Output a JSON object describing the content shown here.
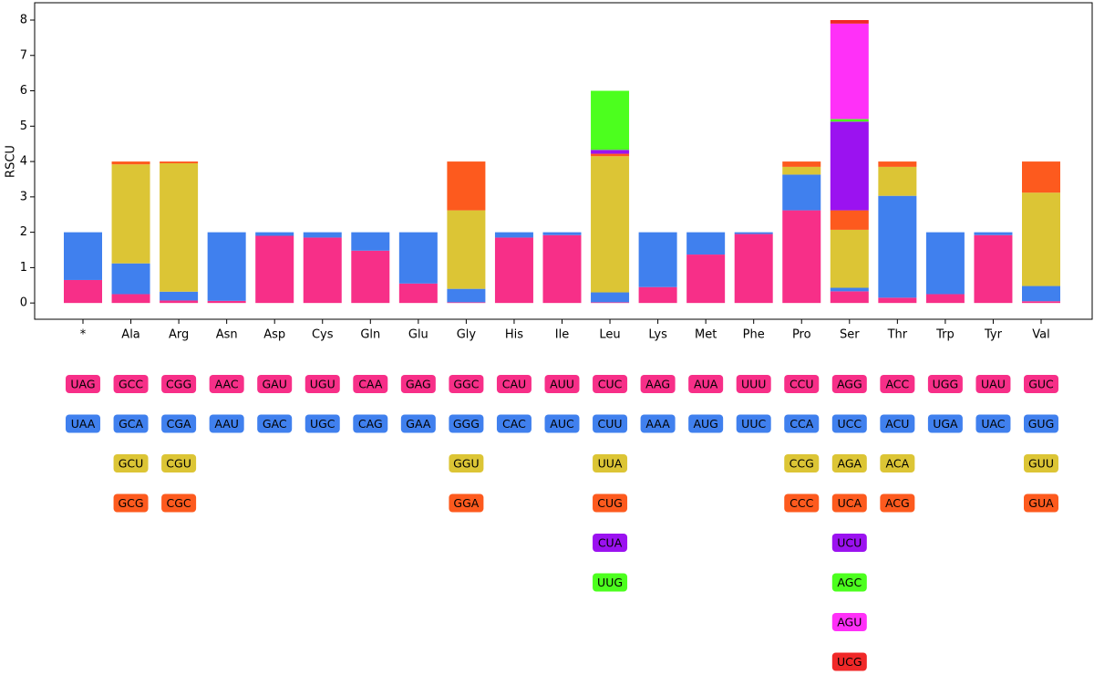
{
  "chart_data": {
    "type": "bar",
    "stacked": true,
    "ylabel": "RSCU",
    "ylim": [
      -0.46,
      8.49
    ],
    "yticks": [
      0,
      1,
      2,
      3,
      4,
      5,
      6,
      7,
      8
    ],
    "layer_colors": [
      "#f72f88",
      "#4080ee",
      "#dcc535",
      "#fd5a1e",
      "#9b12f0",
      "#4cff1e",
      "#ff30f8",
      "#f02828"
    ],
    "groups": [
      {
        "category": "*",
        "codons": [
          {
            "label": "UAG",
            "value": 0.65
          },
          {
            "label": "UAA",
            "value": 1.35
          }
        ]
      },
      {
        "category": "Ala",
        "codons": [
          {
            "label": "GCC",
            "value": 0.25
          },
          {
            "label": "GCA",
            "value": 0.87
          },
          {
            "label": "GCU",
            "value": 2.8
          },
          {
            "label": "GCG",
            "value": 0.08
          }
        ]
      },
      {
        "category": "Arg",
        "codons": [
          {
            "label": "CGG",
            "value": 0.07
          },
          {
            "label": "CGA",
            "value": 0.25
          },
          {
            "label": "CGU",
            "value": 3.63
          },
          {
            "label": "CGC",
            "value": 0.05
          }
        ]
      },
      {
        "category": "Asn",
        "codons": [
          {
            "label": "AAC",
            "value": 0.06
          },
          {
            "label": "AAU",
            "value": 1.94
          }
        ]
      },
      {
        "category": "Asp",
        "codons": [
          {
            "label": "GAU",
            "value": 1.9
          },
          {
            "label": "GAC",
            "value": 0.1
          }
        ]
      },
      {
        "category": "Cys",
        "codons": [
          {
            "label": "UGU",
            "value": 1.85
          },
          {
            "label": "UGC",
            "value": 0.15
          }
        ]
      },
      {
        "category": "Gln",
        "codons": [
          {
            "label": "CAA",
            "value": 1.48
          },
          {
            "label": "CAG",
            "value": 0.52
          }
        ]
      },
      {
        "category": "Glu",
        "codons": [
          {
            "label": "GAG",
            "value": 0.55
          },
          {
            "label": "GAA",
            "value": 1.45
          }
        ]
      },
      {
        "category": "Gly",
        "codons": [
          {
            "label": "GGC",
            "value": 0.02
          },
          {
            "label": "GGG",
            "value": 0.38
          },
          {
            "label": "GGU",
            "value": 2.22
          },
          {
            "label": "GGA",
            "value": 1.38
          }
        ]
      },
      {
        "category": "His",
        "codons": [
          {
            "label": "CAU",
            "value": 1.85
          },
          {
            "label": "CAC",
            "value": 0.15
          }
        ]
      },
      {
        "category": "Ile",
        "codons": [
          {
            "label": "AUU",
            "value": 1.92
          },
          {
            "label": "AUC",
            "value": 0.08
          }
        ]
      },
      {
        "category": "Leu",
        "codons": [
          {
            "label": "CUC",
            "value": 0.02
          },
          {
            "label": "CUU",
            "value": 0.28
          },
          {
            "label": "UUA",
            "value": 3.85
          },
          {
            "label": "CUG",
            "value": 0.07
          },
          {
            "label": "CUA",
            "value": 0.11
          },
          {
            "label": "UUG",
            "value": 1.67
          }
        ]
      },
      {
        "category": "Lys",
        "codons": [
          {
            "label": "AAG",
            "value": 0.45
          },
          {
            "label": "AAA",
            "value": 1.55
          }
        ]
      },
      {
        "category": "Met",
        "codons": [
          {
            "label": "AUA",
            "value": 1.37
          },
          {
            "label": "AUG",
            "value": 0.63
          }
        ]
      },
      {
        "category": "Phe",
        "codons": [
          {
            "label": "UUU",
            "value": 1.95
          },
          {
            "label": "UUC",
            "value": 0.05
          }
        ]
      },
      {
        "category": "Pro",
        "codons": [
          {
            "label": "CCU",
            "value": 2.62
          },
          {
            "label": "CCA",
            "value": 1.01
          },
          {
            "label": "CCG",
            "value": 0.22
          },
          {
            "label": "CCC",
            "value": 0.15
          }
        ]
      },
      {
        "category": "Ser",
        "codons": [
          {
            "label": "AGG",
            "value": 0.33
          },
          {
            "label": "UCC",
            "value": 0.1
          },
          {
            "label": "AGA",
            "value": 1.64
          },
          {
            "label": "UCA",
            "value": 0.55
          },
          {
            "label": "UCU",
            "value": 2.51
          },
          {
            "label": "AGC",
            "value": 0.07
          },
          {
            "label": "AGU",
            "value": 2.7
          },
          {
            "label": "UCG",
            "value": 0.1
          }
        ]
      },
      {
        "category": "Thr",
        "codons": [
          {
            "label": "ACC",
            "value": 0.15
          },
          {
            "label": "ACU",
            "value": 2.88
          },
          {
            "label": "ACA",
            "value": 0.82
          },
          {
            "label": "ACG",
            "value": 0.15
          }
        ]
      },
      {
        "category": "Trp",
        "codons": [
          {
            "label": "UGG",
            "value": 0.25
          },
          {
            "label": "UGA",
            "value": 1.75
          }
        ]
      },
      {
        "category": "Tyr",
        "codons": [
          {
            "label": "UAU",
            "value": 1.92
          },
          {
            "label": "UAC",
            "value": 0.08
          }
        ]
      },
      {
        "category": "Val",
        "codons": [
          {
            "label": "GUC",
            "value": 0.05
          },
          {
            "label": "GUG",
            "value": 0.43
          },
          {
            "label": "GUU",
            "value": 2.64
          },
          {
            "label": "GUA",
            "value": 0.88
          }
        ]
      }
    ]
  }
}
